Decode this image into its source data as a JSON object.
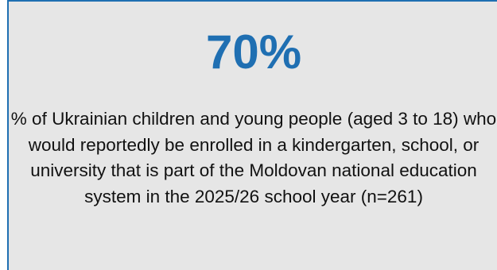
{
  "stat": {
    "value": "70%",
    "color": "#1f6fb2"
  },
  "description": "% of Ukrainian children and young people (aged 3 to 18) who would reportedly be enrolled in a kindergarten, school, or university that is part of the Moldovan national education system in the 2025/26 school year (n=261)"
}
